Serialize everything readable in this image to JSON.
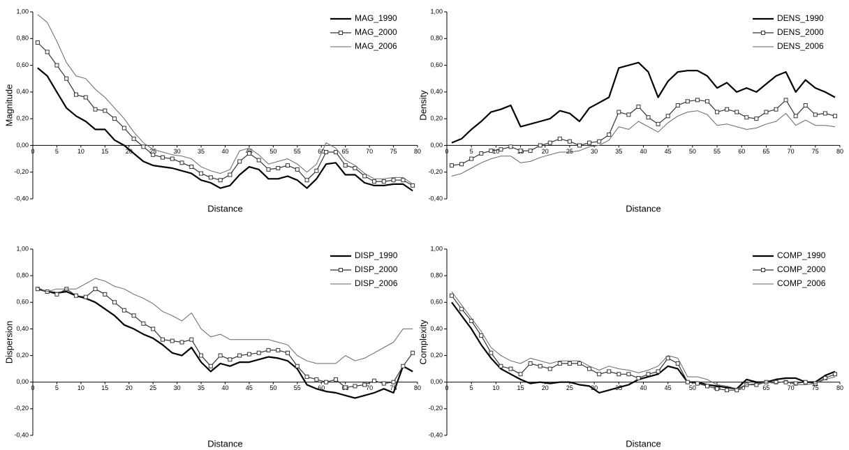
{
  "chart_data": [
    {
      "type": "line",
      "x_label": "Distance",
      "y_label": "Magnitude",
      "legend": "upper right",
      "x": [
        1,
        3,
        5,
        7,
        9,
        11,
        13,
        15,
        17,
        19,
        21,
        23,
        25,
        27,
        29,
        31,
        33,
        35,
        37,
        39,
        41,
        43,
        45,
        47,
        49,
        51,
        53,
        55,
        57,
        59,
        61,
        63,
        65,
        67,
        69,
        71,
        73,
        75,
        77,
        79
      ],
      "xlim": [
        0,
        80
      ],
      "xticks": [
        0,
        5,
        10,
        15,
        20,
        25,
        30,
        35,
        40,
        45,
        50,
        55,
        60,
        65,
        70,
        75,
        80
      ],
      "ylim": [
        -0.4,
        1.0
      ],
      "yticks": [
        {
          "value": -0.4,
          "label": "-0,40"
        },
        {
          "value": -0.2,
          "label": "-0,20"
        },
        {
          "value": 0,
          "label": "0,00"
        },
        {
          "value": 0.2,
          "label": "0,20"
        },
        {
          "value": 0.4,
          "label": "0,40"
        },
        {
          "value": 0.6,
          "label": "0,60"
        },
        {
          "value": 0.8,
          "label": "0,80"
        },
        {
          "value": 1.0,
          "label": "1,00"
        }
      ],
      "series": [
        {
          "name": "MAG_1990",
          "color": "#000000",
          "line_width": 2.2,
          "values": [
            0.58,
            0.52,
            0.4,
            0.28,
            0.22,
            0.18,
            0.12,
            0.12,
            0.04,
            0.0,
            -0.06,
            -0.12,
            -0.15,
            -0.16,
            -0.17,
            -0.19,
            -0.21,
            -0.26,
            -0.28,
            -0.32,
            -0.3,
            -0.22,
            -0.16,
            -0.18,
            -0.25,
            -0.25,
            -0.23,
            -0.26,
            -0.32,
            -0.25,
            -0.14,
            -0.13,
            -0.22,
            -0.22,
            -0.28,
            -0.3,
            -0.3,
            -0.29,
            -0.29,
            -0.34
          ]
        },
        {
          "name": "MAG_2000",
          "color": "#333333",
          "line_width": 1.2,
          "marker": "square",
          "values": [
            0.77,
            0.7,
            0.6,
            0.5,
            0.38,
            0.36,
            0.27,
            0.26,
            0.2,
            0.13,
            0.05,
            -0.01,
            -0.07,
            -0.09,
            -0.1,
            -0.13,
            -0.16,
            -0.21,
            -0.24,
            -0.26,
            -0.22,
            -0.12,
            -0.06,
            -0.11,
            -0.18,
            -0.17,
            -0.15,
            -0.18,
            -0.26,
            -0.19,
            -0.05,
            -0.05,
            -0.15,
            -0.17,
            -0.23,
            -0.27,
            -0.27,
            -0.26,
            -0.26,
            -0.3
          ]
        },
        {
          "name": "MAG_2006",
          "color": "#666666",
          "line_width": 1,
          "values": [
            0.98,
            0.92,
            0.78,
            0.62,
            0.52,
            0.5,
            0.42,
            0.36,
            0.28,
            0.2,
            0.1,
            0.02,
            -0.03,
            -0.05,
            -0.07,
            -0.08,
            -0.1,
            -0.16,
            -0.19,
            -0.21,
            -0.18,
            -0.04,
            -0.02,
            -0.07,
            -0.14,
            -0.12,
            -0.1,
            -0.14,
            -0.2,
            -0.14,
            0.02,
            -0.02,
            -0.11,
            -0.15,
            -0.21,
            -0.25,
            -0.25,
            -0.24,
            -0.24,
            -0.29
          ]
        }
      ]
    },
    {
      "type": "line",
      "x_label": "Distance",
      "y_label": "Density",
      "legend": "upper right",
      "x": [
        1,
        3,
        5,
        7,
        9,
        11,
        13,
        15,
        17,
        19,
        21,
        23,
        25,
        27,
        29,
        31,
        33,
        35,
        37,
        39,
        41,
        43,
        45,
        47,
        49,
        51,
        53,
        55,
        57,
        59,
        61,
        63,
        65,
        67,
        69,
        71,
        73,
        75,
        77,
        79
      ],
      "xlim": [
        0,
        80
      ],
      "xticks": [
        0,
        5,
        10,
        15,
        20,
        25,
        30,
        35,
        40,
        45,
        50,
        55,
        60,
        65,
        70,
        75,
        80
      ],
      "ylim": [
        -0.4,
        1.0
      ],
      "yticks": [
        {
          "value": -0.4,
          "label": "-0,40"
        },
        {
          "value": -0.2,
          "label": "-0,20"
        },
        {
          "value": 0,
          "label": "0,00"
        },
        {
          "value": 0.2,
          "label": "0,20"
        },
        {
          "value": 0.4,
          "label": "0,40"
        },
        {
          "value": 0.6,
          "label": "0,60"
        },
        {
          "value": 0.8,
          "label": "0,80"
        },
        {
          "value": 1.0,
          "label": "1,00"
        }
      ],
      "series": [
        {
          "name": "DENS_1990",
          "color": "#000000",
          "line_width": 2.2,
          "values": [
            0.02,
            0.05,
            0.12,
            0.18,
            0.25,
            0.27,
            0.3,
            0.14,
            0.16,
            0.18,
            0.2,
            0.26,
            0.24,
            0.18,
            0.28,
            0.32,
            0.36,
            0.58,
            0.6,
            0.62,
            0.55,
            0.36,
            0.48,
            0.55,
            0.56,
            0.56,
            0.52,
            0.43,
            0.47,
            0.4,
            0.43,
            0.4,
            0.46,
            0.52,
            0.55,
            0.4,
            0.49,
            0.43,
            0.4,
            0.36
          ]
        },
        {
          "name": "DENS_2000",
          "color": "#333333",
          "line_width": 1.2,
          "marker": "square",
          "values": [
            -0.15,
            -0.14,
            -0.1,
            -0.06,
            -0.04,
            -0.03,
            -0.01,
            -0.04,
            -0.04,
            0.0,
            0.02,
            0.05,
            0.03,
            0.0,
            0.02,
            0.03,
            0.08,
            0.25,
            0.23,
            0.29,
            0.21,
            0.16,
            0.22,
            0.3,
            0.33,
            0.34,
            0.33,
            0.25,
            0.27,
            0.25,
            0.21,
            0.2,
            0.25,
            0.27,
            0.34,
            0.22,
            0.3,
            0.23,
            0.24,
            0.22
          ]
        },
        {
          "name": "DENS_2006",
          "color": "#666666",
          "line_width": 1,
          "values": [
            -0.23,
            -0.21,
            -0.17,
            -0.13,
            -0.1,
            -0.08,
            -0.08,
            -0.13,
            -0.12,
            -0.09,
            -0.07,
            -0.05,
            -0.05,
            -0.04,
            -0.01,
            0.0,
            0.04,
            0.14,
            0.12,
            0.18,
            0.14,
            0.1,
            0.17,
            0.22,
            0.25,
            0.26,
            0.23,
            0.15,
            0.16,
            0.14,
            0.12,
            0.13,
            0.16,
            0.18,
            0.24,
            0.15,
            0.19,
            0.15,
            0.15,
            0.14
          ]
        }
      ]
    },
    {
      "type": "line",
      "x_label": "Distance",
      "y_label": "Dispersion",
      "legend": "upper right",
      "x": [
        1,
        3,
        5,
        7,
        9,
        11,
        13,
        15,
        17,
        19,
        21,
        23,
        25,
        27,
        29,
        31,
        33,
        35,
        37,
        39,
        41,
        43,
        45,
        47,
        49,
        51,
        53,
        55,
        57,
        59,
        61,
        63,
        65,
        67,
        69,
        71,
        73,
        75,
        77,
        79
      ],
      "xlim": [
        0,
        80
      ],
      "xticks": [
        0,
        5,
        10,
        15,
        20,
        25,
        30,
        35,
        40,
        45,
        50,
        55,
        60,
        65,
        70,
        75,
        80
      ],
      "ylim": [
        -0.4,
        1.0
      ],
      "yticks": [
        {
          "value": -0.4,
          "label": "-0,40"
        },
        {
          "value": -0.2,
          "label": "-0,20"
        },
        {
          "value": 0,
          "label": "0,00"
        },
        {
          "value": 0.2,
          "label": "0,20"
        },
        {
          "value": 0.4,
          "label": "0,40"
        },
        {
          "value": 0.6,
          "label": "0,60"
        },
        {
          "value": 0.8,
          "label": "0,80"
        },
        {
          "value": 1.0,
          "label": "1,00"
        }
      ],
      "series": [
        {
          "name": "DISP_1990",
          "color": "#000000",
          "line_width": 2.2,
          "values": [
            0.7,
            0.68,
            0.67,
            0.68,
            0.65,
            0.63,
            0.6,
            0.55,
            0.5,
            0.43,
            0.4,
            0.36,
            0.33,
            0.28,
            0.22,
            0.2,
            0.26,
            0.15,
            0.08,
            0.14,
            0.12,
            0.15,
            0.15,
            0.17,
            0.19,
            0.18,
            0.16,
            0.1,
            -0.02,
            -0.05,
            -0.07,
            -0.08,
            -0.1,
            -0.12,
            -0.1,
            -0.08,
            -0.05,
            -0.08,
            0.12,
            0.08
          ]
        },
        {
          "name": "DISP_2000",
          "color": "#333333",
          "line_width": 1.2,
          "marker": "square",
          "values": [
            0.7,
            0.68,
            0.66,
            0.7,
            0.65,
            0.64,
            0.7,
            0.66,
            0.6,
            0.54,
            0.5,
            0.44,
            0.4,
            0.32,
            0.31,
            0.3,
            0.32,
            0.2,
            0.12,
            0.2,
            0.17,
            0.2,
            0.21,
            0.22,
            0.24,
            0.24,
            0.22,
            0.12,
            0.04,
            0.02,
            0.0,
            0.02,
            -0.04,
            -0.03,
            -0.02,
            0.01,
            -0.01,
            0.0,
            0.12,
            0.22
          ]
        },
        {
          "name": "DISP_2006",
          "color": "#666666",
          "line_width": 1,
          "values": [
            0.71,
            0.68,
            0.7,
            0.7,
            0.7,
            0.74,
            0.78,
            0.76,
            0.72,
            0.7,
            0.66,
            0.63,
            0.59,
            0.53,
            0.5,
            0.46,
            0.52,
            0.4,
            0.34,
            0.36,
            0.32,
            0.32,
            0.32,
            0.32,
            0.32,
            0.3,
            0.28,
            0.2,
            0.16,
            0.14,
            0.14,
            0.14,
            0.2,
            0.16,
            0.18,
            0.22,
            0.26,
            0.3,
            0.4,
            0.4
          ]
        }
      ]
    },
    {
      "type": "line",
      "x_label": "Distance",
      "y_label": "Complexity",
      "legend": "upper right",
      "x": [
        1,
        3,
        5,
        7,
        9,
        11,
        13,
        15,
        17,
        19,
        21,
        23,
        25,
        27,
        29,
        31,
        33,
        35,
        37,
        39,
        41,
        43,
        45,
        47,
        49,
        51,
        53,
        55,
        57,
        59,
        61,
        63,
        65,
        67,
        69,
        71,
        73,
        75,
        77,
        79
      ],
      "xlim": [
        0,
        80
      ],
      "xticks": [
        0,
        5,
        10,
        15,
        20,
        25,
        30,
        35,
        40,
        45,
        50,
        55,
        60,
        65,
        70,
        75,
        80
      ],
      "ylim": [
        -0.4,
        1.0
      ],
      "yticks": [
        {
          "value": -0.4,
          "label": "-0,40"
        },
        {
          "value": -0.2,
          "label": "-0,20"
        },
        {
          "value": 0,
          "label": "0,00"
        },
        {
          "value": 0.2,
          "label": "0,20"
        },
        {
          "value": 0.4,
          "label": "0,40"
        },
        {
          "value": 0.6,
          "label": "0,60"
        },
        {
          "value": 0.8,
          "label": "0,80"
        },
        {
          "value": 1.0,
          "label": "1,00"
        }
      ],
      "series": [
        {
          "name": "COMP_1990",
          "color": "#000000",
          "line_width": 2.2,
          "values": [
            0.6,
            0.5,
            0.4,
            0.28,
            0.18,
            0.1,
            0.06,
            0.02,
            -0.01,
            0.0,
            -0.01,
            0.0,
            0.0,
            -0.02,
            -0.03,
            -0.08,
            -0.06,
            -0.04,
            -0.02,
            0.02,
            0.04,
            0.06,
            0.12,
            0.1,
            0.0,
            0.0,
            -0.02,
            -0.03,
            -0.04,
            -0.05,
            0.02,
            0.0,
            0.0,
            0.02,
            0.03,
            0.03,
            0.0,
            0.0,
            0.05,
            0.08
          ]
        },
        {
          "name": "COMP_2000",
          "color": "#333333",
          "line_width": 1.2,
          "marker": "square",
          "values": [
            0.65,
            0.55,
            0.46,
            0.35,
            0.22,
            0.12,
            0.1,
            0.06,
            0.14,
            0.12,
            0.1,
            0.14,
            0.14,
            0.14,
            0.1,
            0.06,
            0.08,
            0.06,
            0.06,
            0.03,
            0.06,
            0.08,
            0.18,
            0.14,
            0.0,
            -0.01,
            -0.03,
            -0.05,
            -0.06,
            -0.06,
            -0.02,
            -0.02,
            0.0,
            0.0,
            0.0,
            -0.01,
            0.0,
            -0.01,
            0.03,
            0.06
          ]
        },
        {
          "name": "COMP_2006",
          "color": "#666666",
          "line_width": 1,
          "values": [
            0.68,
            0.58,
            0.48,
            0.38,
            0.26,
            0.2,
            0.16,
            0.14,
            0.18,
            0.16,
            0.14,
            0.16,
            0.16,
            0.16,
            0.12,
            0.09,
            0.12,
            0.1,
            0.09,
            0.07,
            0.09,
            0.12,
            0.2,
            0.18,
            0.04,
            0.04,
            0.02,
            -0.02,
            -0.03,
            -0.05,
            -0.02,
            -0.01,
            0.0,
            -0.01,
            0.01,
            -0.02,
            -0.02,
            -0.01,
            0.02,
            0.04
          ]
        }
      ]
    }
  ]
}
